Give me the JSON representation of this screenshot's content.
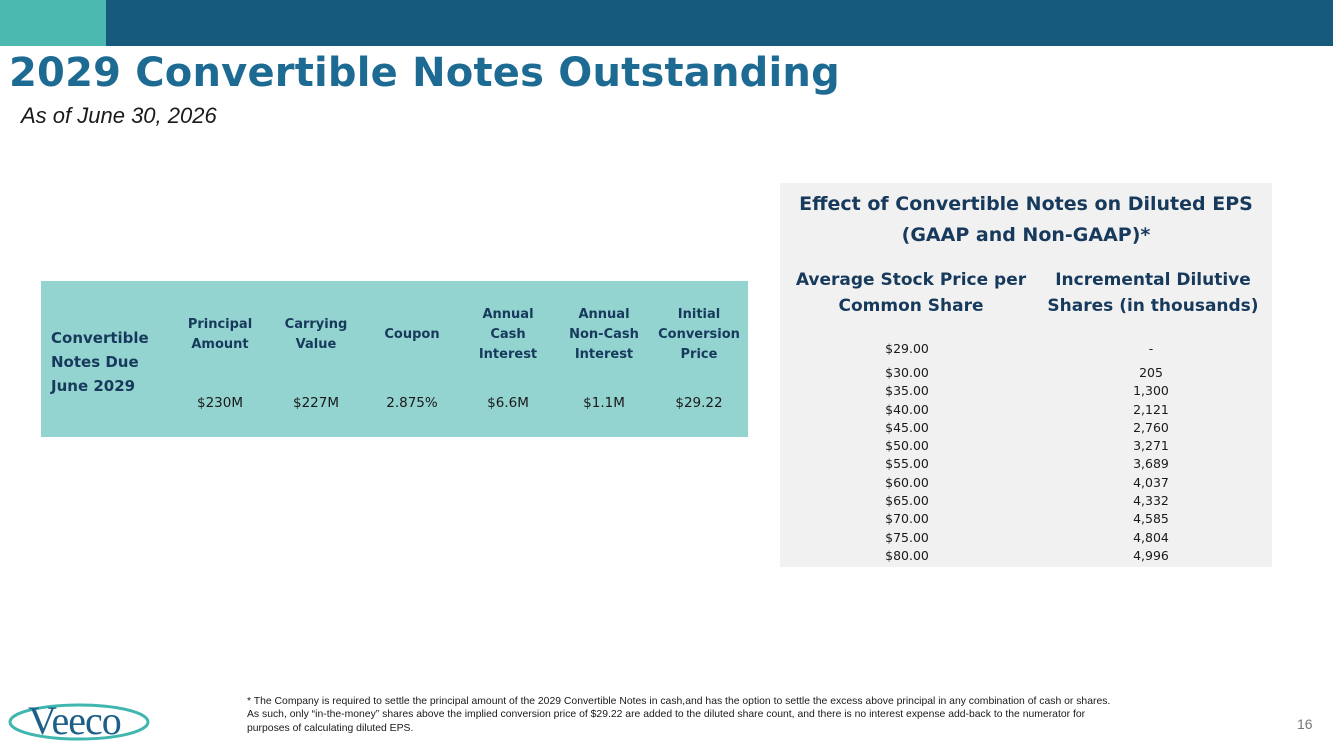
{
  "header": {
    "title": "2029 Convertible Notes Outstanding",
    "subtitle": "As of June 30, 2026",
    "colors": {
      "bar": "#165a7e",
      "accent": "#4bb9b0",
      "title": "#1d6a93"
    }
  },
  "notes_table": {
    "row_label": "Convertible Notes Due June 2029",
    "columns": [
      {
        "label": "Principal Amount",
        "value": "$230M"
      },
      {
        "label": "Carrying Value",
        "value": "$227M"
      },
      {
        "label": "Coupon",
        "value": "2.875%"
      },
      {
        "label": "Annual Cash Interest",
        "value": "$6.6M"
      },
      {
        "label": "Annual Non-Cash Interest",
        "value": "$1.1M"
      },
      {
        "label": "Initial Conversion Price",
        "value": "$29.22"
      }
    ],
    "background": "#93d4d0"
  },
  "eps_table": {
    "title": "Effect of Convertible Notes on Diluted EPS (GAAP and Non-GAAP)*",
    "col_price": "Average Stock Price per Common Share",
    "col_shares": "Incremental Dilutive Shares (in thousands)",
    "rows": [
      {
        "price": "$29.00",
        "shares": "-"
      },
      {
        "price": "$30.00",
        "shares": "205"
      },
      {
        "price": "$35.00",
        "shares": "1,300"
      },
      {
        "price": "$40.00",
        "shares": "2,121"
      },
      {
        "price": "$45.00",
        "shares": "2,760"
      },
      {
        "price": "$50.00",
        "shares": "3,271"
      },
      {
        "price": "$55.00",
        "shares": "3,689"
      },
      {
        "price": "$60.00",
        "shares": "4,037"
      },
      {
        "price": "$65.00",
        "shares": "4,332"
      },
      {
        "price": "$70.00",
        "shares": "4,585"
      },
      {
        "price": "$75.00",
        "shares": "4,804"
      },
      {
        "price": "$80.00",
        "shares": "4,996"
      }
    ]
  },
  "footer": {
    "logo_text": "Veeco",
    "footnote": "* The Company is required to settle the principal amount of the 2029 Convertible Notes in cash,and has the option to settle the excess above principal in any combination of cash or shares. As such, only “in-the-money” shares above the implied conversion price of $29.22 are added to the diluted share count, and there is no interest expense add-back to the numerator for purposes of calculating diluted EPS.",
    "page_number": "16"
  }
}
